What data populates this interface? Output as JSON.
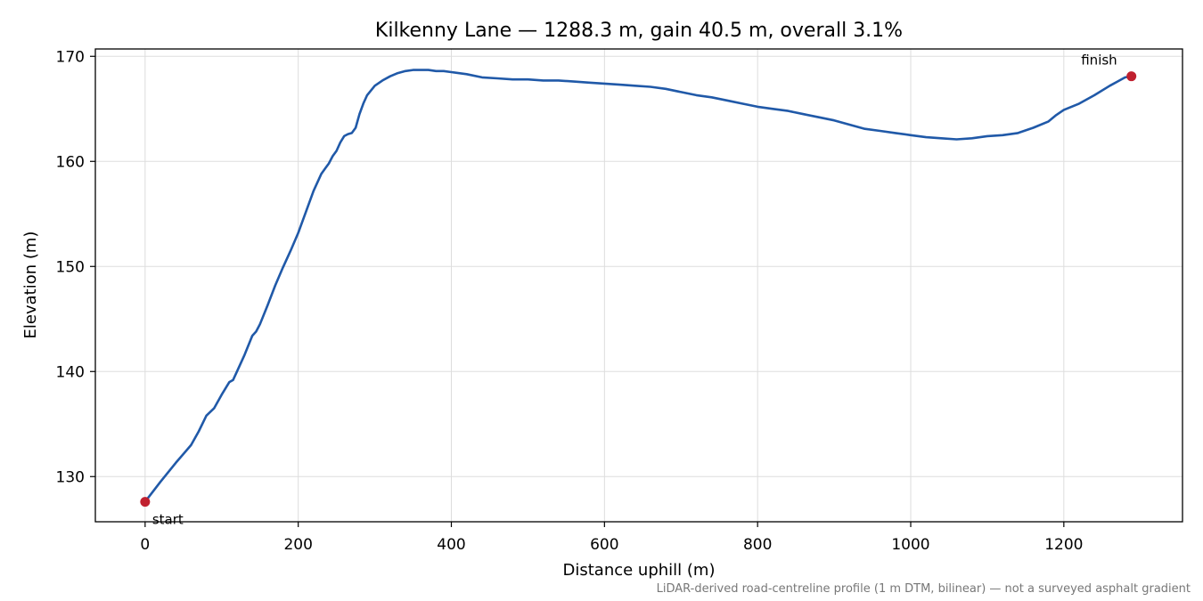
{
  "chart_data": {
    "type": "line",
    "title": "Kilkenny Lane — 1288.3 m, gain 40.5 m, overall 3.1%",
    "xlabel": "Distance uphill (m)",
    "ylabel": "Elevation (m)",
    "xlim": [
      -65,
      1355
    ],
    "ylim": [
      125.7,
      170.7
    ],
    "xticks": [
      0,
      200,
      400,
      600,
      800,
      1000,
      1200
    ],
    "yticks": [
      130,
      140,
      150,
      160,
      170
    ],
    "grid": true,
    "footnote": "LiDAR-derived road-centreline profile (1 m DTM, bilinear) — not a surveyed asphalt gradient",
    "colors": {
      "line": "#2059a8",
      "marker": "#c0202f",
      "grid": "#dddddd"
    },
    "series": [
      {
        "x": [
          0,
          20,
          40,
          60,
          70,
          80,
          90,
          100,
          110,
          115,
          120,
          130,
          140,
          145,
          150,
          160,
          170,
          180,
          190,
          200,
          210,
          220,
          230,
          236,
          240,
          245,
          250,
          255,
          260,
          265,
          270,
          275,
          280,
          285,
          290,
          300,
          310,
          320,
          330,
          340,
          350,
          360,
          370,
          380,
          390,
          400,
          420,
          440,
          460,
          480,
          500,
          520,
          540,
          560,
          580,
          600,
          620,
          640,
          660,
          680,
          700,
          720,
          740,
          760,
          780,
          800,
          820,
          840,
          860,
          880,
          900,
          920,
          940,
          960,
          980,
          1000,
          1020,
          1040,
          1060,
          1080,
          1100,
          1120,
          1140,
          1160,
          1180,
          1190,
          1200,
          1220,
          1240,
          1260,
          1270,
          1280,
          1288.3
        ],
        "y": [
          127.6,
          129.5,
          131.3,
          133.0,
          134.3,
          135.8,
          136.5,
          137.8,
          139.0,
          139.2,
          140.0,
          141.6,
          143.4,
          143.8,
          144.5,
          146.3,
          148.2,
          149.9,
          151.5,
          153.2,
          155.2,
          157.2,
          158.8,
          159.4,
          159.8,
          160.5,
          161.0,
          161.8,
          162.4,
          162.6,
          162.7,
          163.2,
          164.5,
          165.5,
          166.3,
          167.2,
          167.7,
          168.1,
          168.4,
          168.6,
          168.7,
          168.7,
          168.7,
          168.6,
          168.6,
          168.5,
          168.3,
          168.0,
          167.9,
          167.8,
          167.8,
          167.7,
          167.7,
          167.6,
          167.5,
          167.4,
          167.3,
          167.2,
          167.1,
          166.9,
          166.6,
          166.3,
          166.1,
          165.8,
          165.5,
          165.2,
          165.0,
          164.8,
          164.5,
          164.2,
          163.9,
          163.5,
          163.1,
          162.9,
          162.7,
          162.5,
          162.3,
          162.2,
          162.1,
          162.2,
          162.4,
          162.5,
          162.7,
          163.2,
          163.8,
          164.4,
          164.9,
          165.5,
          166.3,
          167.2,
          167.6,
          168.0,
          168.1
        ]
      }
    ],
    "annotations": [
      {
        "text": "start",
        "x": 0,
        "y": 127.6
      },
      {
        "text": "finish",
        "x": 1288.3,
        "y": 168.1
      }
    ]
  }
}
